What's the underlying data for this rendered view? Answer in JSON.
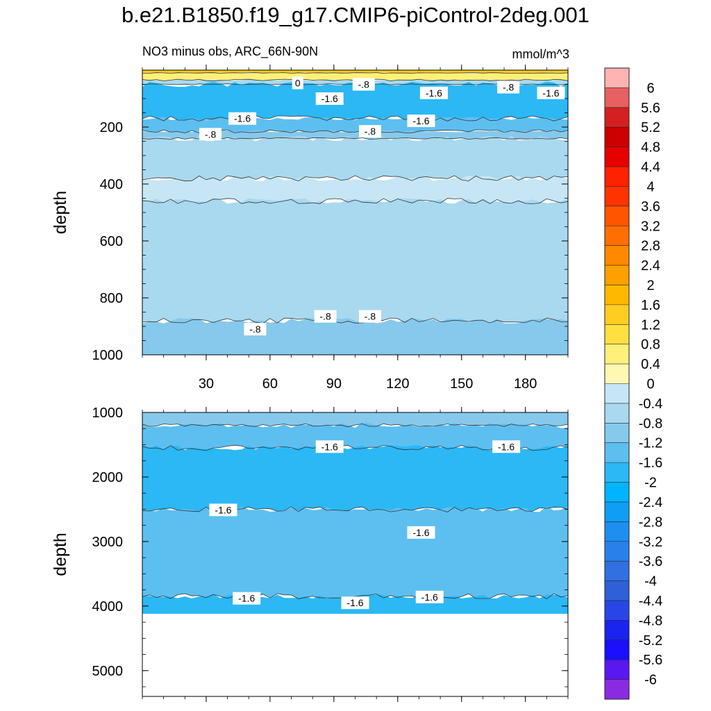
{
  "title": "b.e21.B1850.f19_g17.CMIP6-piControl-2deg.001",
  "subtitle_left": "NO3 minus obs, ARC_66N-90N",
  "units": "mmol/m^3",
  "chart_data": [
    {
      "type": "heatmap",
      "panel": "upper",
      "xlabel": "",
      "ylabel": "depth",
      "xlim": [
        0,
        200
      ],
      "ylim": [
        1000,
        0
      ],
      "x_ticks": [
        30,
        60,
        90,
        120,
        150,
        180
      ],
      "y_ticks": [
        200,
        400,
        600,
        800,
        1000
      ],
      "layers": [
        {
          "depth_top": 0,
          "depth_bottom": 10,
          "value": 1.4
        },
        {
          "depth_top": 10,
          "depth_bottom": 35,
          "value": 0.6
        },
        {
          "depth_top": 35,
          "depth_bottom": 50,
          "value": -0.6
        },
        {
          "depth_top": 50,
          "depth_bottom": 170,
          "value": -1.8
        },
        {
          "depth_top": 170,
          "depth_bottom": 215,
          "value": -1.4
        },
        {
          "depth_top": 215,
          "depth_bottom": 240,
          "value": -1.0
        },
        {
          "depth_top": 240,
          "depth_bottom": 380,
          "value": -0.6
        },
        {
          "depth_top": 380,
          "depth_bottom": 460,
          "value": -0.2
        },
        {
          "depth_top": 460,
          "depth_bottom": 880,
          "value": -0.6
        },
        {
          "depth_top": 880,
          "depth_bottom": 1000,
          "value": -1.0
        }
      ],
      "contour_labels": [
        {
          "text": "0",
          "x": 73,
          "depth": 45
        },
        {
          "text": "-.8",
          "x": 104,
          "depth": 50
        },
        {
          "text": "-1.6",
          "x": 88,
          "depth": 100
        },
        {
          "text": "-1.6",
          "x": 137,
          "depth": 80
        },
        {
          "text": "-.8",
          "x": 172,
          "depth": 60
        },
        {
          "text": "-1.6",
          "x": 192,
          "depth": 80
        },
        {
          "text": "-1.6",
          "x": 47,
          "depth": 170
        },
        {
          "text": "-1.6",
          "x": 131,
          "depth": 178
        },
        {
          "text": "-.8",
          "x": 32,
          "depth": 225
        },
        {
          "text": "-.8",
          "x": 107,
          "depth": 215
        },
        {
          "text": "-.8",
          "x": 53,
          "depth": 910
        },
        {
          "text": "-.8",
          "x": 86,
          "depth": 865
        },
        {
          "text": "-.8",
          "x": 107,
          "depth": 865
        }
      ]
    },
    {
      "type": "heatmap",
      "panel": "lower",
      "xlabel": "",
      "ylabel": "depth",
      "xlim": [
        0,
        200
      ],
      "ylim": [
        5400,
        1000
      ],
      "y_ticks": [
        1000,
        2000,
        3000,
        4000,
        5000
      ],
      "layers": [
        {
          "depth_top": 1000,
          "depth_bottom": 1200,
          "value": -1.0
        },
        {
          "depth_top": 1200,
          "depth_bottom": 1550,
          "value": -1.4
        },
        {
          "depth_top": 1550,
          "depth_bottom": 2500,
          "value": -1.8
        },
        {
          "depth_top": 2500,
          "depth_bottom": 3850,
          "value": -1.4
        },
        {
          "depth_top": 3850,
          "depth_bottom": 4120,
          "value": -1.8
        }
      ],
      "contour_labels": [
        {
          "text": "-1.6",
          "x": 88,
          "depth": 1530
        },
        {
          "text": "-1.6",
          "x": 171,
          "depth": 1530
        },
        {
          "text": "-1.6",
          "x": 38,
          "depth": 2510
        },
        {
          "text": "-1.6",
          "x": 131,
          "depth": 2860
        },
        {
          "text": "-1.6",
          "x": 49,
          "depth": 3880
        },
        {
          "text": "-1.6",
          "x": 100,
          "depth": 3950
        },
        {
          "text": "-1.6",
          "x": 135,
          "depth": 3860
        }
      ]
    }
  ],
  "colorbar": {
    "labels": [
      "6",
      "5.6",
      "5.2",
      "4.8",
      "4.4",
      "4",
      "3.6",
      "3.2",
      "2.8",
      "2.4",
      "2",
      "1.6",
      "1.2",
      "0.8",
      "0.4",
      "0",
      "-0.4",
      "-0.8",
      "-1.2",
      "-1.6",
      "-2",
      "-2.4",
      "-2.8",
      "-3.2",
      "-3.6",
      "-4",
      "-4.4",
      "-4.8",
      "-5.2",
      "-5.6",
      "-6"
    ],
    "colors": [
      "#ffb3b3",
      "#e86060",
      "#d42020",
      "#cc0000",
      "#e60000",
      "#ff2200",
      "#ff3300",
      "#ff5500",
      "#ff6e00",
      "#ff8800",
      "#ffa000",
      "#ffb800",
      "#ffcc20",
      "#ffe040",
      "#fff07a",
      "#fff8b3",
      "#c6e6f5",
      "#a9d9ef",
      "#86c9ec",
      "#5dbff0",
      "#2bb8f5",
      "#00b4ff",
      "#0f9ef5",
      "#1e8ef0",
      "#2a80ea",
      "#3070e0",
      "#2f60d8",
      "#2846e6",
      "#1a24f0",
      "#1a10ff",
      "#5a18f0",
      "#8a2be2"
    ]
  }
}
